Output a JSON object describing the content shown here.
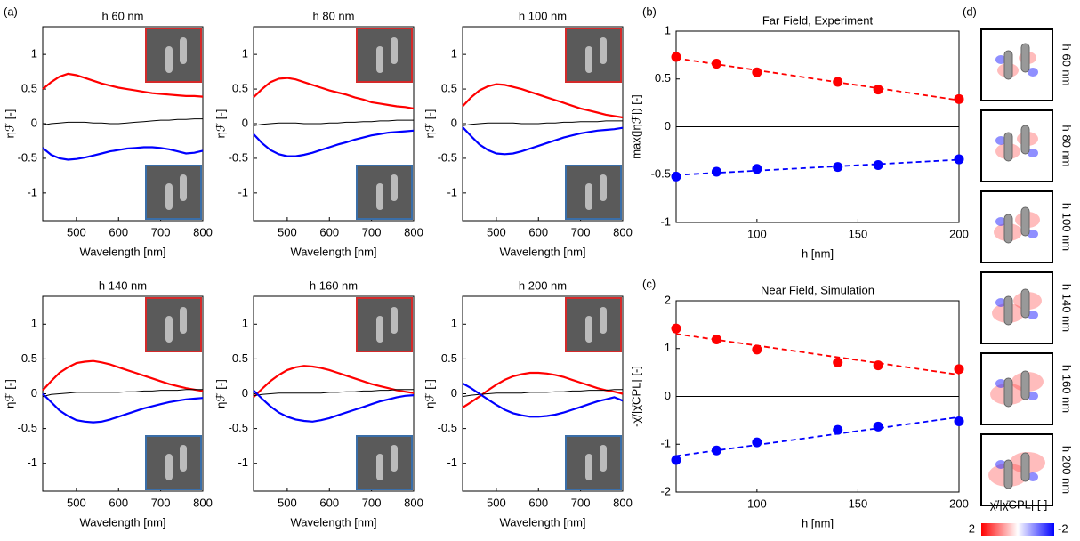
{
  "chart_data": [
    {
      "type": "line",
      "panel_label": "(a)",
      "title": "h 60 nm",
      "xlabel": "Wavelength [nm]",
      "ylabel": "ηℱ [-]",
      "x": [
        420,
        440,
        460,
        480,
        500,
        520,
        540,
        560,
        580,
        600,
        620,
        640,
        660,
        680,
        700,
        720,
        740,
        760,
        780,
        800
      ],
      "xlim": [
        420,
        800
      ],
      "xticks": [
        500,
        600,
        700,
        800
      ],
      "ylim": [
        -1.4,
        1.4
      ],
      "yticks": [
        -1,
        -0.5,
        0,
        0.5,
        1
      ],
      "series": [
        {
          "color": "#ff0000",
          "values": [
            0.5,
            0.6,
            0.68,
            0.72,
            0.7,
            0.66,
            0.62,
            0.58,
            0.55,
            0.52,
            0.5,
            0.48,
            0.46,
            0.44,
            0.43,
            0.42,
            0.41,
            0.4,
            0.4,
            0.39
          ]
        },
        {
          "color": "#000000",
          "values": [
            -0.02,
            0.0,
            0.01,
            0.02,
            0.02,
            0.02,
            0.01,
            0.01,
            0.0,
            0.0,
            0.01,
            0.02,
            0.03,
            0.04,
            0.05,
            0.05,
            0.06,
            0.06,
            0.07,
            0.07
          ]
        },
        {
          "color": "#0000ff",
          "values": [
            -0.35,
            -0.45,
            -0.5,
            -0.52,
            -0.51,
            -0.49,
            -0.46,
            -0.43,
            -0.4,
            -0.38,
            -0.36,
            -0.35,
            -0.34,
            -0.34,
            -0.35,
            -0.37,
            -0.4,
            -0.43,
            -0.42,
            -0.39
          ]
        }
      ]
    },
    {
      "type": "line",
      "title": "h 80 nm",
      "xlabel": "Wavelength [nm]",
      "ylabel": "ηℱ [-]",
      "x": [
        420,
        440,
        460,
        480,
        500,
        520,
        540,
        560,
        580,
        600,
        620,
        640,
        660,
        680,
        700,
        720,
        740,
        760,
        780,
        800
      ],
      "xlim": [
        420,
        800
      ],
      "xticks": [
        500,
        600,
        700,
        800
      ],
      "ylim": [
        -1.4,
        1.4
      ],
      "yticks": [
        -1,
        -0.5,
        0,
        0.5,
        1
      ],
      "series": [
        {
          "color": "#ff0000",
          "values": [
            0.38,
            0.5,
            0.6,
            0.65,
            0.66,
            0.64,
            0.6,
            0.56,
            0.52,
            0.48,
            0.45,
            0.42,
            0.38,
            0.35,
            0.31,
            0.29,
            0.27,
            0.25,
            0.24,
            0.22
          ]
        },
        {
          "color": "#000000",
          "values": [
            -0.03,
            -0.01,
            0.0,
            0.01,
            0.01,
            0.01,
            0.0,
            0.0,
            0.0,
            0.01,
            0.01,
            0.02,
            0.02,
            0.03,
            0.03,
            0.04,
            0.04,
            0.05,
            0.05,
            0.05
          ]
        },
        {
          "color": "#0000ff",
          "values": [
            -0.15,
            -0.28,
            -0.38,
            -0.44,
            -0.47,
            -0.47,
            -0.45,
            -0.42,
            -0.38,
            -0.34,
            -0.3,
            -0.27,
            -0.23,
            -0.2,
            -0.17,
            -0.15,
            -0.13,
            -0.12,
            -0.11,
            -0.1
          ]
        }
      ]
    },
    {
      "type": "line",
      "title": "h 100 nm",
      "xlabel": "Wavelength [nm]",
      "ylabel": "ηℱ [-]",
      "x": [
        420,
        440,
        460,
        480,
        500,
        520,
        540,
        560,
        580,
        600,
        620,
        640,
        660,
        680,
        700,
        720,
        740,
        760,
        780,
        800
      ],
      "xlim": [
        420,
        800
      ],
      "xticks": [
        500,
        600,
        700,
        800
      ],
      "ylim": [
        -1.4,
        1.4
      ],
      "yticks": [
        -1,
        -0.5,
        0,
        0.5,
        1
      ],
      "series": [
        {
          "color": "#ff0000",
          "values": [
            0.25,
            0.38,
            0.48,
            0.54,
            0.57,
            0.56,
            0.53,
            0.5,
            0.46,
            0.42,
            0.38,
            0.34,
            0.3,
            0.26,
            0.22,
            0.19,
            0.16,
            0.13,
            0.11,
            0.09
          ]
        },
        {
          "color": "#000000",
          "values": [
            -0.03,
            -0.01,
            0.0,
            0.01,
            0.01,
            0.01,
            0.01,
            0.0,
            0.0,
            0.0,
            0.01,
            0.01,
            0.02,
            0.02,
            0.03,
            0.03,
            0.03,
            0.04,
            0.04,
            0.04
          ]
        },
        {
          "color": "#0000ff",
          "values": [
            -0.05,
            -0.18,
            -0.3,
            -0.38,
            -0.43,
            -0.44,
            -0.43,
            -0.4,
            -0.36,
            -0.32,
            -0.28,
            -0.24,
            -0.2,
            -0.17,
            -0.14,
            -0.12,
            -0.1,
            -0.09,
            -0.08,
            -0.06
          ]
        }
      ]
    },
    {
      "type": "line",
      "title": "h 140 nm",
      "xlabel": "Wavelength [nm]",
      "ylabel": "ηℱ [-]",
      "x": [
        420,
        440,
        460,
        480,
        500,
        520,
        540,
        560,
        580,
        600,
        620,
        640,
        660,
        680,
        700,
        720,
        740,
        760,
        780,
        800
      ],
      "xlim": [
        420,
        800
      ],
      "xticks": [
        500,
        600,
        700,
        800
      ],
      "ylim": [
        -1.4,
        1.4
      ],
      "yticks": [
        -1,
        -0.5,
        0,
        0.5,
        1
      ],
      "series": [
        {
          "color": "#ff0000",
          "values": [
            0.05,
            0.18,
            0.3,
            0.38,
            0.44,
            0.46,
            0.47,
            0.45,
            0.42,
            0.38,
            0.34,
            0.3,
            0.26,
            0.22,
            0.18,
            0.14,
            0.11,
            0.08,
            0.06,
            0.04
          ]
        },
        {
          "color": "#000000",
          "values": [
            -0.04,
            -0.01,
            0.0,
            0.01,
            0.02,
            0.02,
            0.02,
            0.02,
            0.02,
            0.02,
            0.03,
            0.03,
            0.04,
            0.04,
            0.05,
            0.05,
            0.05,
            0.06,
            0.06,
            0.06
          ]
        },
        {
          "color": "#0000ff",
          "values": [
            0.0,
            -0.12,
            -0.24,
            -0.32,
            -0.38,
            -0.4,
            -0.41,
            -0.4,
            -0.37,
            -0.33,
            -0.29,
            -0.25,
            -0.21,
            -0.18,
            -0.15,
            -0.12,
            -0.1,
            -0.08,
            -0.07,
            -0.06
          ]
        }
      ]
    },
    {
      "type": "line",
      "title": "h 160 nm",
      "xlabel": "Wavelength [nm]",
      "ylabel": "ηℱ [-]",
      "x": [
        420,
        440,
        460,
        480,
        500,
        520,
        540,
        560,
        580,
        600,
        620,
        640,
        660,
        680,
        700,
        720,
        740,
        760,
        780,
        800
      ],
      "xlim": [
        420,
        800
      ],
      "xticks": [
        500,
        600,
        700,
        800
      ],
      "ylim": [
        -1.4,
        1.4
      ],
      "yticks": [
        -1,
        -0.5,
        0,
        0.5,
        1
      ],
      "series": [
        {
          "color": "#ff0000",
          "values": [
            -0.05,
            0.07,
            0.18,
            0.27,
            0.34,
            0.38,
            0.4,
            0.39,
            0.37,
            0.34,
            0.3,
            0.26,
            0.22,
            0.18,
            0.14,
            0.11,
            0.08,
            0.05,
            0.03,
            0.01
          ]
        },
        {
          "color": "#000000",
          "values": [
            -0.03,
            -0.01,
            0.0,
            0.01,
            0.01,
            0.01,
            0.01,
            0.01,
            0.01,
            0.02,
            0.02,
            0.03,
            0.03,
            0.04,
            0.04,
            0.05,
            0.05,
            0.06,
            0.06,
            0.06
          ]
        },
        {
          "color": "#0000ff",
          "values": [
            0.05,
            -0.07,
            -0.18,
            -0.27,
            -0.33,
            -0.37,
            -0.39,
            -0.4,
            -0.38,
            -0.35,
            -0.31,
            -0.27,
            -0.23,
            -0.19,
            -0.15,
            -0.11,
            -0.08,
            -0.05,
            -0.03,
            -0.02
          ]
        }
      ]
    },
    {
      "type": "line",
      "title": "h 200 nm",
      "xlabel": "Wavelength [nm]",
      "ylabel": "ηℱ [-]",
      "x": [
        420,
        440,
        460,
        480,
        500,
        520,
        540,
        560,
        580,
        600,
        620,
        640,
        660,
        680,
        700,
        720,
        740,
        760,
        780,
        800
      ],
      "xlim": [
        420,
        800
      ],
      "xticks": [
        500,
        600,
        700,
        800
      ],
      "ylim": [
        -1.4,
        1.4
      ],
      "yticks": [
        -1,
        -0.5,
        0,
        0.5,
        1
      ],
      "series": [
        {
          "color": "#ff0000",
          "values": [
            -0.2,
            -0.12,
            -0.04,
            0.05,
            0.13,
            0.2,
            0.25,
            0.28,
            0.3,
            0.3,
            0.29,
            0.27,
            0.24,
            0.2,
            0.16,
            0.12,
            0.08,
            0.05,
            0.03,
            0.0
          ]
        },
        {
          "color": "#000000",
          "values": [
            -0.04,
            -0.02,
            -0.01,
            0.0,
            0.01,
            0.01,
            0.01,
            0.01,
            0.02,
            0.02,
            0.02,
            0.03,
            0.03,
            0.04,
            0.04,
            0.05,
            0.05,
            0.05,
            0.06,
            0.06
          ]
        },
        {
          "color": "#0000ff",
          "values": [
            0.15,
            0.08,
            0.0,
            -0.08,
            -0.16,
            -0.23,
            -0.28,
            -0.31,
            -0.33,
            -0.33,
            -0.32,
            -0.3,
            -0.27,
            -0.23,
            -0.19,
            -0.15,
            -0.11,
            -0.08,
            -0.05,
            -0.1
          ]
        }
      ]
    },
    {
      "type": "scatter",
      "panel_label": "(b)",
      "title": "Far Field, Experiment",
      "xlabel": "h [nm]",
      "ylabel": "max(|ηℱ|) [-]",
      "x": [
        60,
        80,
        100,
        140,
        160,
        200
      ],
      "xlim": [
        60,
        200
      ],
      "xticks": [
        100,
        150,
        200
      ],
      "ylim": [
        -1,
        1
      ],
      "yticks": [
        -1,
        -0.5,
        0,
        0.5,
        1
      ],
      "zero_line": true,
      "fit": true,
      "series": [
        {
          "color": "#ff0000",
          "values": [
            0.73,
            0.66,
            0.57,
            0.47,
            0.39,
            0.29
          ]
        },
        {
          "color": "#0000ff",
          "values": [
            -0.52,
            -0.47,
            -0.44,
            -0.42,
            -0.4,
            -0.34
          ]
        }
      ]
    },
    {
      "type": "scatter",
      "panel_label": "(c)",
      "title": "Near Field, Simulation",
      "xlabel": "h [nm]",
      "ylabel": "-χ̄/|χ̄CPL| [-]",
      "x": [
        60,
        80,
        100,
        140,
        160,
        200
      ],
      "xlim": [
        60,
        200
      ],
      "xticks": [
        100,
        150,
        200
      ],
      "ylim": [
        -2,
        2
      ],
      "yticks": [
        -2,
        -1,
        0,
        1,
        2
      ],
      "zero_line": true,
      "fit": true,
      "series": [
        {
          "color": "#ff0000",
          "values": [
            1.42,
            1.19,
            0.98,
            0.71,
            0.65,
            0.57
          ]
        },
        {
          "color": "#0000ff",
          "values": [
            -1.33,
            -1.13,
            -0.96,
            -0.7,
            -0.63,
            -0.52
          ]
        }
      ]
    }
  ],
  "field_maps": {
    "panel_label": "(d)",
    "labels": [
      "h 60 nm",
      "h 80 nm",
      "h 100 nm",
      "h 140 nm",
      "h 160 nm",
      "h 200 nm"
    ],
    "colorbar_label": "-χ̄/|χ̄CPL| [-]",
    "clim": [
      -2,
      2
    ]
  }
}
